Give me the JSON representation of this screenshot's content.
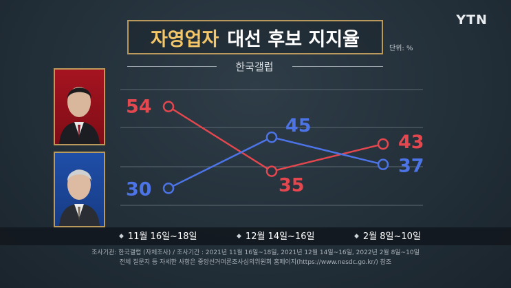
{
  "logo": "YTN",
  "title_highlight": "자영업자",
  "title_rest": "대선 후보 지지율",
  "unit": "단위: %",
  "source": "한국갤럽",
  "colors": {
    "series_red": "#e5474f",
    "series_blue": "#4d74e6",
    "title_gold": "#f4c66a"
  },
  "chart_data": {
    "type": "line",
    "x": [
      "11월 16일~18일",
      "12월 14일~16일",
      "2월 8일~10일"
    ],
    "series": [
      {
        "values": [
          54,
          35,
          43
        ],
        "color": "#e5474f"
      },
      {
        "values": [
          30,
          45,
          37
        ],
        "color": "#4d74e6"
      }
    ],
    "ylim": [
      25,
      60
    ],
    "grid": true
  },
  "footnote_1": "조사기관: 한국갤럽 (자체조사) / 조사기간 : 2021년 11월 16일~18일, 2021년 12월 14일~16일, 2022년 2월 8일~10일",
  "footnote_2": "전체 질문지 등 자세한 사항은 중앙선거여론조사심의위원회 홈페이지(https://www.nesdc.go.kr/) 참조"
}
